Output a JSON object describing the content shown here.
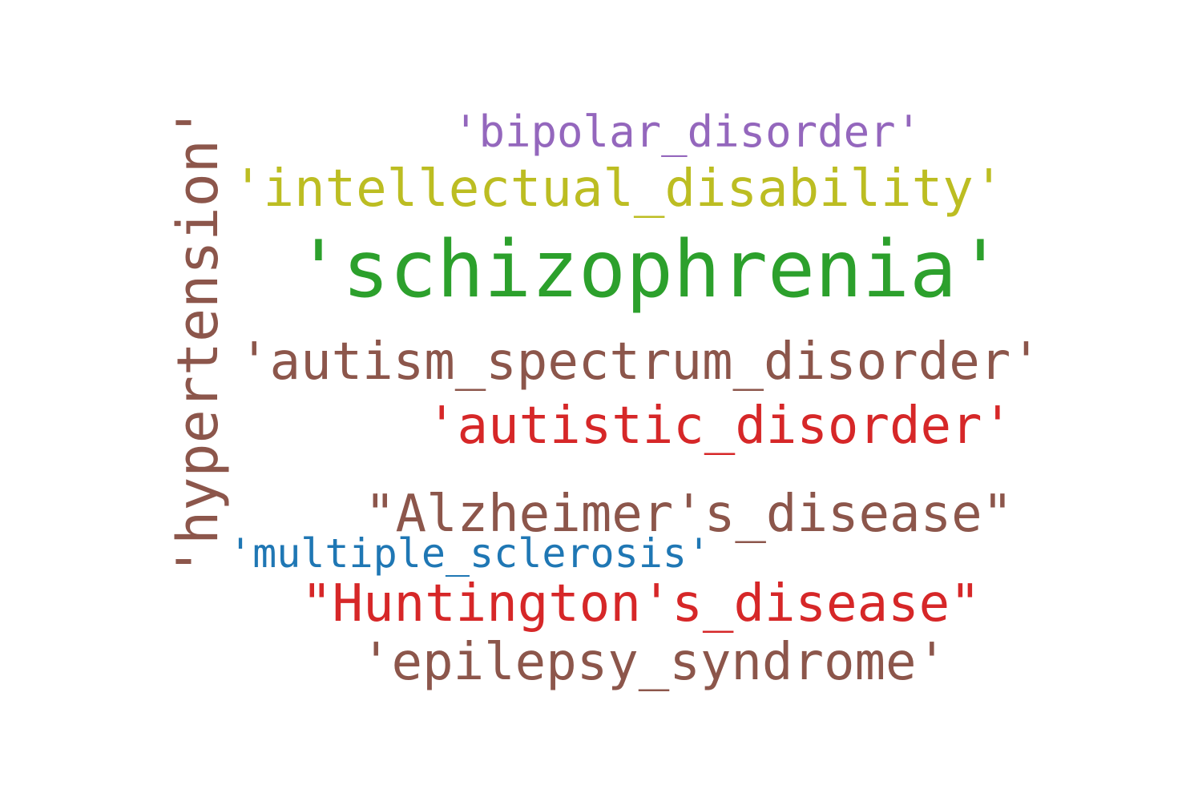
{
  "words": [
    {
      "text": "'bipolar_disorder'",
      "color": "#9467bd"
    },
    {
      "text": "'intellectual_disability'",
      "color": "#bcbd22"
    },
    {
      "text": "'schizophrenia'",
      "color": "#2ca02c"
    },
    {
      "text": "'autism_spectrum_disorder'",
      "color": "#8c564b"
    },
    {
      "text": "'autistic_disorder'",
      "color": "#d62728"
    },
    {
      "text": "\"Alzheimer's_disease\"",
      "color": "#8c564b"
    },
    {
      "text": "'multiple_sclerosis'",
      "color": "#1f77b4"
    },
    {
      "text": "\"Huntington's_disease\"",
      "color": "#d62728"
    },
    {
      "text": "'epilepsy_syndrome'",
      "color": "#8c564b"
    },
    {
      "text": "'hypertension'",
      "color": "#8c564b",
      "orientation": "vertical"
    }
  ]
}
